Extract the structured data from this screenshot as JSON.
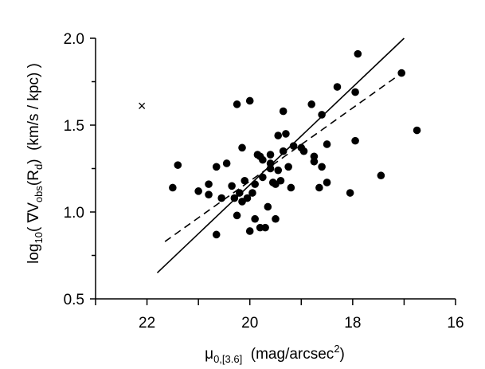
{
  "chart_data": {
    "type": "scatter",
    "title": "",
    "xaxis": {
      "label_main": "μ",
      "label_sub": "0,[3.6]",
      "label_units_pre": "  (mag/arcsec",
      "label_units_sup": "2",
      "label_units_post": ")",
      "range": [
        23,
        16
      ],
      "ticks": [
        22,
        20,
        18,
        16
      ],
      "tick_labels": [
        "22",
        "20",
        "18",
        "16"
      ],
      "minor_ticks": [
        23,
        21,
        19,
        17
      ],
      "inverted": true
    },
    "yaxis": {
      "label_pre": "log",
      "label_sub1": "10",
      "label_mid": "( ∇V",
      "label_sub2": "obs",
      "label_mid2": "(R",
      "label_sub3": "d",
      "label_post": ")  (km/s / kpc) )",
      "range": [
        0.5,
        2.0
      ],
      "ticks": [
        0.5,
        1.0,
        1.5,
        2.0
      ],
      "tick_labels": [
        "0.5",
        "1.0",
        "1.5",
        "2.0"
      ],
      "minor_ticks": [
        0.75,
        1.25,
        1.75
      ]
    },
    "grid": false,
    "outlier": {
      "x": 22.1,
      "y": 1.61,
      "marker": "×"
    },
    "points": [
      {
        "x": 21.5,
        "y": 1.14
      },
      {
        "x": 21.4,
        "y": 1.27
      },
      {
        "x": 21.0,
        "y": 1.12
      },
      {
        "x": 20.8,
        "y": 1.16
      },
      {
        "x": 20.8,
        "y": 1.1
      },
      {
        "x": 20.65,
        "y": 1.26
      },
      {
        "x": 20.65,
        "y": 0.87
      },
      {
        "x": 20.55,
        "y": 1.08
      },
      {
        "x": 20.45,
        "y": 1.28
      },
      {
        "x": 20.35,
        "y": 1.15
      },
      {
        "x": 20.3,
        "y": 1.08
      },
      {
        "x": 20.25,
        "y": 0.98
      },
      {
        "x": 20.25,
        "y": 1.62
      },
      {
        "x": 20.2,
        "y": 1.11
      },
      {
        "x": 20.15,
        "y": 1.37
      },
      {
        "x": 20.15,
        "y": 1.06
      },
      {
        "x": 20.1,
        "y": 1.18
      },
      {
        "x": 20.05,
        "y": 1.08
      },
      {
        "x": 20.0,
        "y": 0.89
      },
      {
        "x": 20.0,
        "y": 1.64
      },
      {
        "x": 19.95,
        "y": 1.11
      },
      {
        "x": 19.9,
        "y": 1.16
      },
      {
        "x": 19.9,
        "y": 0.96
      },
      {
        "x": 19.85,
        "y": 1.33
      },
      {
        "x": 19.8,
        "y": 1.32
      },
      {
        "x": 19.8,
        "y": 0.91
      },
      {
        "x": 19.75,
        "y": 1.2
      },
      {
        "x": 19.75,
        "y": 1.3
      },
      {
        "x": 19.7,
        "y": 0.91
      },
      {
        "x": 19.65,
        "y": 1.03
      },
      {
        "x": 19.6,
        "y": 1.33
      },
      {
        "x": 19.6,
        "y": 1.28
      },
      {
        "x": 19.6,
        "y": 1.25
      },
      {
        "x": 19.55,
        "y": 1.17
      },
      {
        "x": 19.5,
        "y": 1.16
      },
      {
        "x": 19.5,
        "y": 0.96
      },
      {
        "x": 19.45,
        "y": 1.24
      },
      {
        "x": 19.45,
        "y": 1.44
      },
      {
        "x": 19.4,
        "y": 1.18
      },
      {
        "x": 19.35,
        "y": 1.58
      },
      {
        "x": 19.35,
        "y": 1.35
      },
      {
        "x": 19.3,
        "y": 1.45
      },
      {
        "x": 19.25,
        "y": 1.26
      },
      {
        "x": 19.2,
        "y": 1.14
      },
      {
        "x": 19.15,
        "y": 1.38
      },
      {
        "x": 19.0,
        "y": 1.37
      },
      {
        "x": 18.95,
        "y": 1.35
      },
      {
        "x": 18.8,
        "y": 1.62
      },
      {
        "x": 18.75,
        "y": 1.32
      },
      {
        "x": 18.75,
        "y": 1.29
      },
      {
        "x": 18.65,
        "y": 1.14
      },
      {
        "x": 18.6,
        "y": 1.26
      },
      {
        "x": 18.6,
        "y": 1.56
      },
      {
        "x": 18.5,
        "y": 1.39
      },
      {
        "x": 18.5,
        "y": 1.17
      },
      {
        "x": 18.3,
        "y": 1.72
      },
      {
        "x": 18.05,
        "y": 1.11
      },
      {
        "x": 17.95,
        "y": 1.41
      },
      {
        "x": 17.95,
        "y": 1.69
      },
      {
        "x": 17.9,
        "y": 1.91
      },
      {
        "x": 17.45,
        "y": 1.21
      },
      {
        "x": 17.05,
        "y": 1.8
      },
      {
        "x": 16.75,
        "y": 1.47
      }
    ],
    "lines": [
      {
        "style": "solid",
        "x": [
          21.8,
          17.0
        ],
        "y": [
          0.65,
          2.0
        ]
      },
      {
        "style": "dashed",
        "x": [
          21.65,
          16.95
        ],
        "y": [
          0.83,
          1.82
        ]
      }
    ]
  }
}
